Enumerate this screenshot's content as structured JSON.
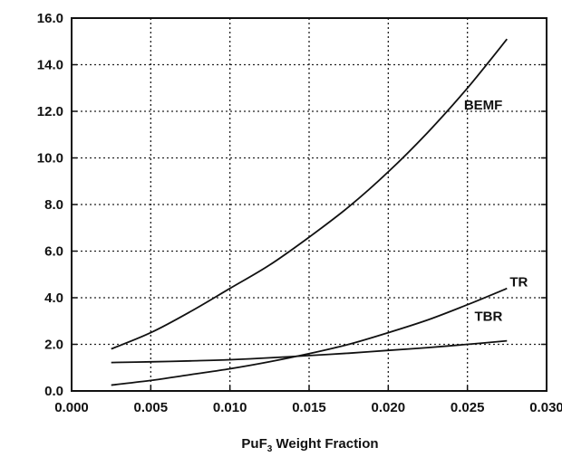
{
  "chart_data": {
    "type": "line",
    "title": "",
    "xlabel": {
      "prefix": "PuF",
      "subscript": "3",
      "suffix": " Weight Fraction"
    },
    "ylabel": "",
    "xlim": [
      0.0,
      0.03
    ],
    "ylim": [
      0.0,
      16.0
    ],
    "grid": true,
    "legend": "none",
    "x_ticks": [
      "0.000",
      "0.005",
      "0.010",
      "0.015",
      "0.020",
      "0.025",
      "0.030"
    ],
    "y_ticks": [
      "0.0",
      "2.0",
      "4.0",
      "6.0",
      "8.0",
      "10.0",
      "12.0",
      "14.0",
      "16.0"
    ],
    "series": [
      {
        "name": "BEMF",
        "x": [
          0.0025,
          0.005,
          0.0075,
          0.01,
          0.0125,
          0.015,
          0.0175,
          0.02,
          0.0225,
          0.025,
          0.0275
        ],
        "y": [
          1.8,
          2.5,
          3.4,
          4.4,
          5.4,
          6.6,
          7.9,
          9.4,
          11.1,
          13.0,
          15.1
        ]
      },
      {
        "name": "TR",
        "x": [
          0.0025,
          0.005,
          0.0075,
          0.01,
          0.0125,
          0.015,
          0.0175,
          0.02,
          0.0225,
          0.025,
          0.0275
        ],
        "y": [
          0.25,
          0.45,
          0.7,
          0.95,
          1.25,
          1.6,
          2.0,
          2.5,
          3.05,
          3.7,
          4.4
        ]
      },
      {
        "name": "TBR",
        "x": [
          0.0025,
          0.005,
          0.0075,
          0.01,
          0.0125,
          0.015,
          0.0175,
          0.02,
          0.0225,
          0.025,
          0.0275
        ],
        "y": [
          1.22,
          1.25,
          1.29,
          1.34,
          1.42,
          1.52,
          1.62,
          1.74,
          1.86,
          2.0,
          2.15
        ]
      }
    ]
  }
}
